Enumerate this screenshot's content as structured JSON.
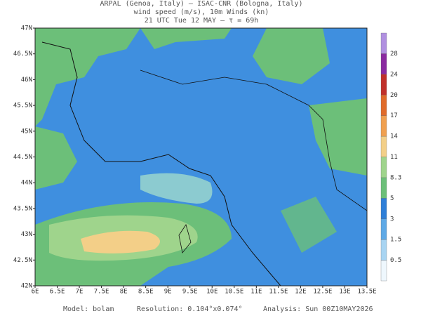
{
  "header": {
    "lines": [
      "ARPAL (Genoa, Italy)  —  ISAC-CNR (Bologna, Italy)",
      "wind speed (m/s), 10m Winds (kn)",
      "21 UTC Tue 12 MAY  —  τ = 69h"
    ]
  },
  "axes": {
    "lon_labels": [
      "6E",
      "6.5E",
      "7E",
      "7.5E",
      "8E",
      "8.5E",
      "9E",
      "9.5E",
      "10E",
      "10.5E",
      "11E",
      "11.5E",
      "12E",
      "12.5E",
      "13E",
      "13.5E"
    ],
    "lat_labels": [
      "47N",
      "46.5N",
      "46N",
      "45.5N",
      "45N",
      "44.5N",
      "44N",
      "43.5N",
      "43N",
      "42.5N",
      "42N"
    ]
  },
  "colorbar": {
    "labels": [
      "0.5",
      "1.5",
      "3",
      "5",
      "8.3",
      "11",
      "14",
      "17",
      "20",
      "24",
      "28"
    ]
  },
  "footer": {
    "model": "Model: bolam",
    "resolution": "Resolution: 0.104°x0.074°",
    "analysis": "Analysis: Sun 00Z10MAY2026"
  }
}
